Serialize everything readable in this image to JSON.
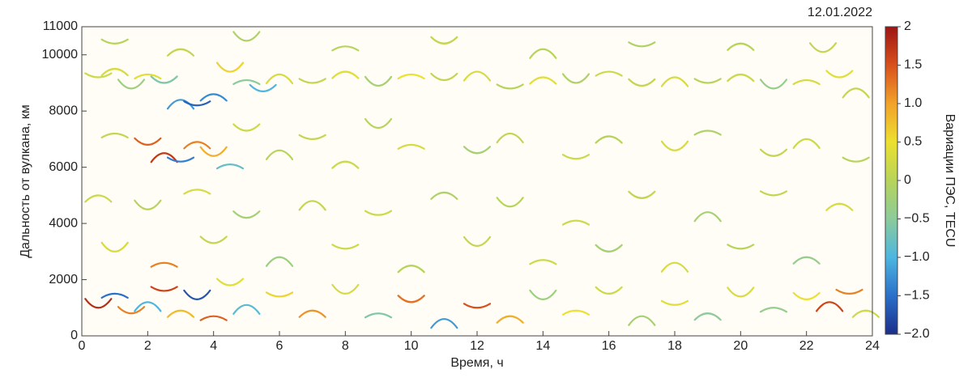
{
  "chart_data": {
    "type": "scatter",
    "title": "12.01.2022",
    "x_label": "Время, ч",
    "y_label": "Дальность от вулкана, км",
    "colorbar_label": "Вариации ПЭС, TECU",
    "xlim": [
      0,
      24
    ],
    "xticks": [
      0,
      2,
      4,
      6,
      8,
      10,
      12,
      14,
      16,
      18,
      20,
      22,
      24
    ],
    "ylim": [
      0,
      11000
    ],
    "yticks": [
      0,
      2000,
      4000,
      6000,
      8000,
      10000,
      11000
    ],
    "clim": [
      -2,
      2
    ],
    "cticks": [
      2,
      1.5,
      {
        "value": 1,
        "label": "1.0"
      },
      0.5,
      0,
      {
        "value": -0.5,
        "label": "−0.5"
      },
      {
        "value": -1,
        "label": "−1.0"
      },
      {
        "value": -1.5,
        "label": "−1.5"
      },
      {
        "value": -2,
        "label": "−2.0"
      }
    ],
    "colormap": [
      "#1b2f8a",
      "#2a6fc9",
      "#4db6e0",
      "#8ccb9a",
      "#b7d45a",
      "#ece030",
      "#f2a22a",
      "#d8501c",
      "#9e1414"
    ],
    "x": [
      0.5,
      1,
      1.5,
      2,
      2.5,
      3,
      3.5,
      4,
      4.5,
      5,
      5.5,
      6,
      7,
      8,
      9,
      10,
      11,
      12,
      13,
      14,
      15,
      16,
      17,
      18,
      19,
      20,
      21,
      22,
      23,
      23.5,
      1,
      3,
      5,
      8,
      11,
      14,
      17,
      20,
      22.5,
      1,
      2,
      2.5,
      3,
      3.5,
      4,
      4.5,
      5,
      6,
      7,
      8,
      9,
      10,
      12,
      13,
      15,
      16,
      18,
      19,
      21,
      22,
      23.5,
      0.5,
      2,
      3.5,
      5,
      7,
      9,
      11,
      13,
      15,
      17,
      19,
      21,
      23,
      1,
      2.5,
      4,
      6,
      8,
      10,
      12,
      14,
      16,
      18,
      20,
      22,
      0.5,
      1,
      1.5,
      2,
      2.5,
      3,
      3.5,
      4,
      4.5,
      5,
      6,
      7,
      8,
      9,
      10,
      11,
      12,
      13,
      14,
      15,
      16,
      17,
      18,
      19,
      20,
      21,
      22,
      22.7,
      23.3,
      23.8
    ],
    "y": [
      9200,
      9500,
      8800,
      9300,
      9000,
      8400,
      8200,
      8600,
      9400,
      9100,
      8700,
      9300,
      9000,
      9400,
      8900,
      9300,
      9100,
      9400,
      8800,
      9200,
      9000,
      9400,
      8900,
      9200,
      9000,
      9300,
      8800,
      9100,
      9200,
      8800,
      10400,
      10200,
      10500,
      10300,
      10400,
      10200,
      10300,
      10400,
      10100,
      7200,
      6800,
      6500,
      6200,
      6900,
      6400,
      6100,
      7300,
      6600,
      7000,
      6200,
      7400,
      6800,
      6500,
      7200,
      6300,
      7100,
      6600,
      7300,
      6400,
      7000,
      6200,
      5000,
      4500,
      5200,
      4200,
      4800,
      4300,
      5100,
      4600,
      4100,
      4900,
      4400,
      5000,
      4700,
      3000,
      2600,
      3300,
      2800,
      3100,
      2500,
      3200,
      2700,
      3000,
      2600,
      3100,
      2800,
      1000,
      1500,
      800,
      1200,
      1600,
      900,
      1300,
      700,
      1800,
      1100,
      1400,
      900,
      1500,
      800,
      1200,
      600,
      1000,
      700,
      1300,
      900,
      1500,
      700,
      1100,
      800,
      1400,
      1000,
      1300,
      1200,
      1500,
      900
    ],
    "tec": [
      0.2,
      0.3,
      -0.3,
      0.4,
      -0.6,
      -1.2,
      -1.6,
      -1.3,
      0.6,
      -0.5,
      -1.0,
      0.3,
      0.1,
      0.4,
      -0.2,
      0.5,
      0.1,
      0.3,
      0.0,
      0.4,
      -0.1,
      0.2,
      0.1,
      0.3,
      0.0,
      0.2,
      -0.4,
      0.3,
      0.4,
      0.1,
      0.0,
      0.1,
      -0.1,
      0.0,
      0.1,
      0.0,
      -0.1,
      0.0,
      0.1,
      0.1,
      1.4,
      1.7,
      -1.4,
      1.2,
      0.9,
      -0.8,
      0.2,
      0.0,
      0.1,
      0.2,
      0.0,
      0.3,
      -0.2,
      0.1,
      0.2,
      0.0,
      0.3,
      -0.1,
      0.1,
      0.2,
      0.0,
      0.2,
      0.0,
      0.3,
      -0.2,
      0.1,
      0.2,
      -0.1,
      0.0,
      0.2,
      0.1,
      -0.2,
      0.1,
      0.3,
      0.3,
      1.2,
      0.1,
      -0.3,
      0.2,
      0.0,
      0.1,
      0.2,
      -0.2,
      0.3,
      0.0,
      -0.4,
      1.8,
      -1.5,
      1.2,
      -1.0,
      1.6,
      0.8,
      -1.7,
      1.4,
      0.4,
      -0.9,
      0.6,
      1.1,
      0.3,
      -0.6,
      1.3,
      -1.2,
      1.5,
      0.9,
      -0.3,
      0.5,
      0.2,
      -0.2,
      0.4,
      -0.5,
      0.3,
      -0.4,
      0.5,
      1.6,
      1.2,
      0.2
    ]
  }
}
